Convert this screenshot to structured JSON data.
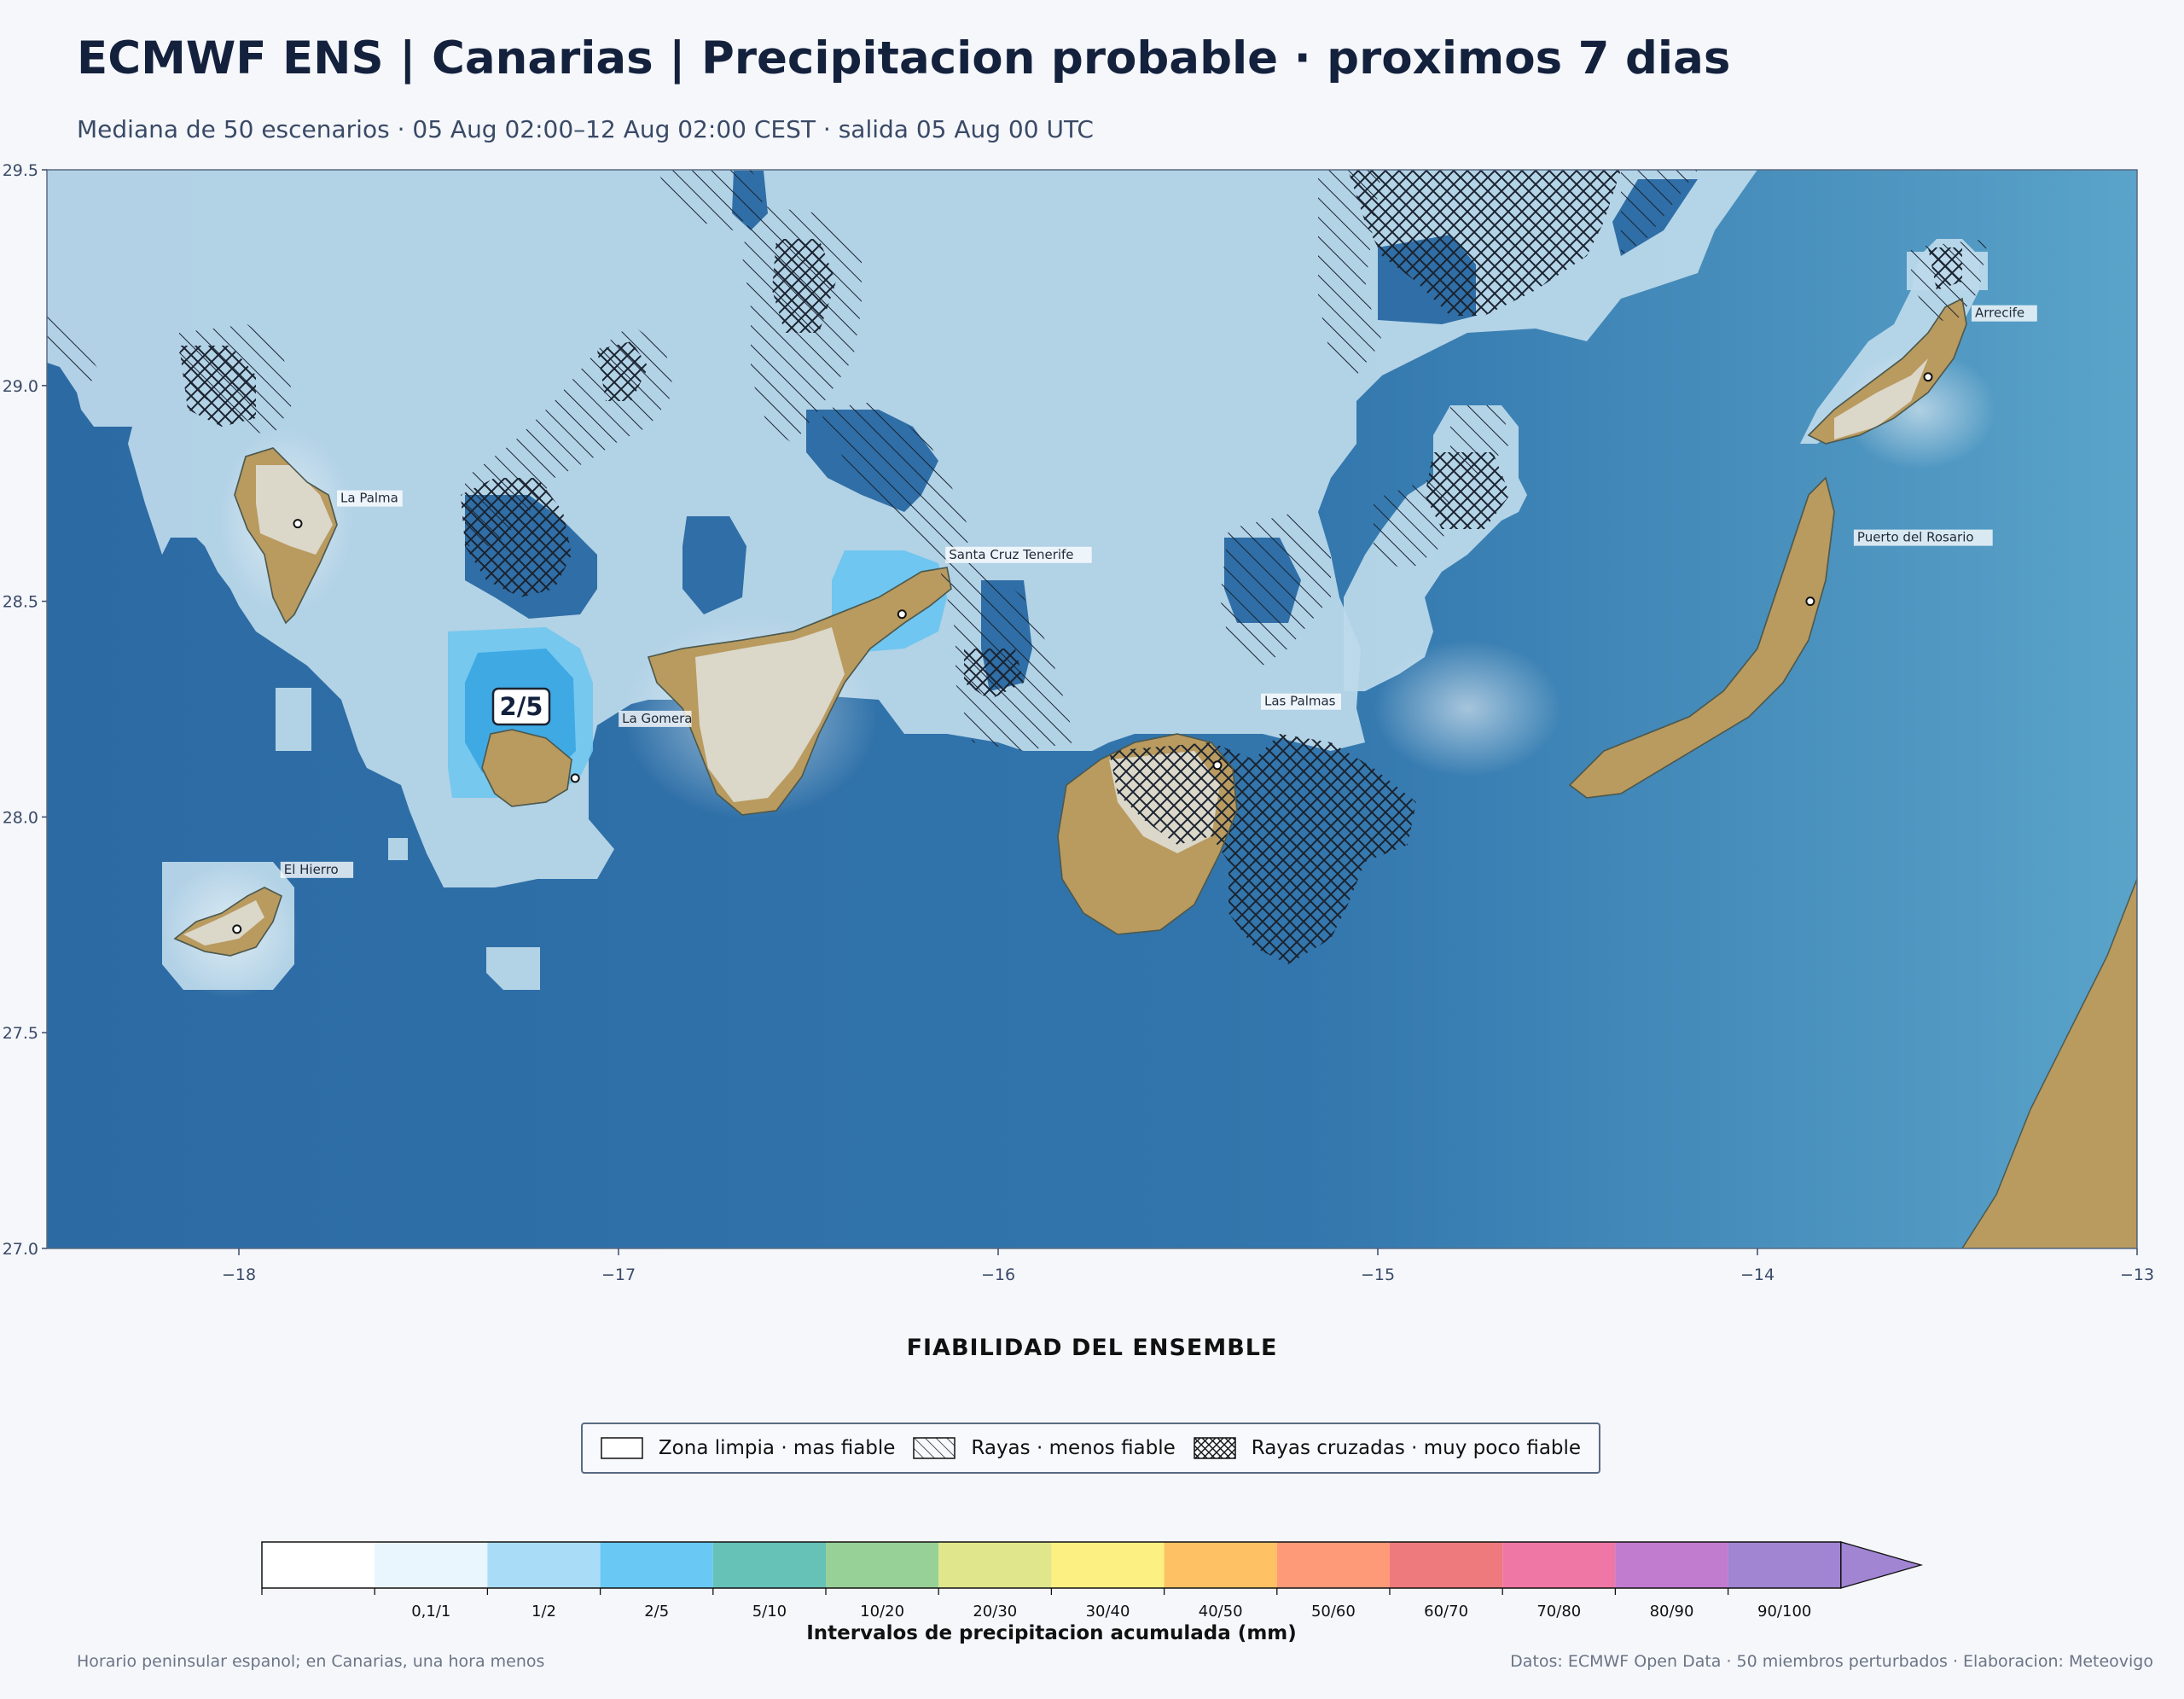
{
  "header": {
    "title": "ECMWF ENS | Canarias | Precipitacion probable · proximos 7 dias",
    "subtitle": "Mediana de 50 escenarios · 05 Aug 02:00–12 Aug 02:00 CEST · salida 05 Aug 00 UTC"
  },
  "map": {
    "lon_range": [
      -18.5,
      -13
    ],
    "lat_range": [
      27,
      29.5
    ],
    "x_ticks": [
      "−18",
      "−17",
      "−16",
      "−15",
      "−14",
      "−13"
    ],
    "y_ticks": [
      "27.0",
      "27.5",
      "28.0",
      "28.5",
      "29.0",
      "29.5"
    ],
    "places": [
      {
        "name": "La Palma",
        "lon": -17.84,
        "lat": 28.68
      },
      {
        "name": "La Gomera",
        "lon": -17.11,
        "lat": 28.09
      },
      {
        "name": "Santa Cruz Tenerife",
        "lon": -16.25,
        "lat": 28.47
      },
      {
        "name": "El Hierro",
        "lon": -18.0,
        "lat": 27.74
      },
      {
        "name": "Las Palmas",
        "lon": -15.42,
        "lat": 28.12
      },
      {
        "name": "Arrecife",
        "lon": -13.55,
        "lat": 29.02
      },
      {
        "name": "Puerto del Rosario",
        "lon": -13.86,
        "lat": 28.5
      }
    ],
    "value_callout": "2/5",
    "colors": {
      "sea": "#2f6ea6",
      "land": "#b99a5f",
      "precip_light": "#cfe6f3",
      "precip_2_5": "#4fb6ea"
    }
  },
  "legend": {
    "title": "FIABILIDAD DEL ENSEMBLE",
    "items": [
      {
        "label": "Zona limpia · mas fiable",
        "pattern": "none"
      },
      {
        "label": "Rayas · menos fiable",
        "pattern": "diagonal"
      },
      {
        "label": "Rayas cruzadas · muy poco fiable",
        "pattern": "crosshatch"
      }
    ]
  },
  "colorbar": {
    "title": "Intervalos de precipitacion acumulada (mm)",
    "bins": [
      {
        "label": "",
        "color": "#ffffff"
      },
      {
        "label": "0,1/1",
        "color": "#e9f6fd"
      },
      {
        "label": "1/2",
        "color": "#a9dcf7"
      },
      {
        "label": "2/5",
        "color": "#69c9f4"
      },
      {
        "label": "5/10",
        "color": "#66c1b7"
      },
      {
        "label": "10/20",
        "color": "#98d197"
      },
      {
        "label": "20/30",
        "color": "#dfe68b"
      },
      {
        "label": "30/40",
        "color": "#fdf082"
      },
      {
        "label": "40/50",
        "color": "#fec164"
      },
      {
        "label": "50/60",
        "color": "#fe9a78"
      },
      {
        "label": "60/70",
        "color": "#ee7a7d"
      },
      {
        "label": "70/80",
        "color": "#ef77a6"
      },
      {
        "label": "80/90",
        "color": "#c27ccf"
      },
      {
        "label": "90/100",
        "color": "#a184d2"
      }
    ],
    "overflow_color": "#a184d2"
  },
  "footer": {
    "left": "Horario peninsular espanol; en Canarias, una hora menos",
    "right": "Datos: ECMWF Open Data · 50 miembros perturbados · Elaboracion: Meteovigo"
  }
}
